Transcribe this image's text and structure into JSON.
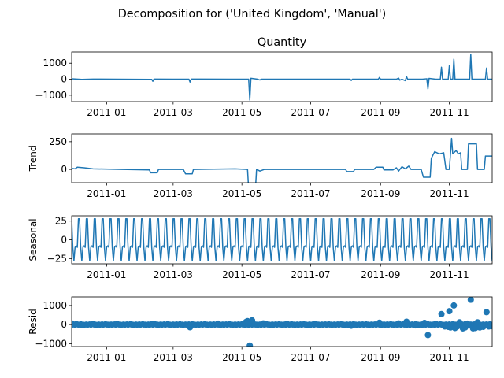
{
  "title": "Decomposition for ('United Kingdom', 'Manual')",
  "colors": {
    "line": "#1f77b4",
    "axis": "#000000",
    "zero": "#000000"
  },
  "x_ticks": [
    "2011-01-01",
    "2011-03-01",
    "2011-05-01",
    "2011-07-01",
    "2011-09-01",
    "2011-11-01"
  ],
  "x_tick_labels": [
    "2011-01",
    "2011-03",
    "2011-05",
    "2011-07",
    "2011-09",
    "2011-11"
  ],
  "x_range": [
    "2010-12-01",
    "2011-12-09"
  ],
  "chart_data": [
    {
      "type": "line",
      "panel_title": "Quantity",
      "ylabel": "",
      "ylim": [
        -1400,
        1700
      ],
      "y_ticks": [
        -1000,
        0,
        1000
      ],
      "points": [
        [
          "2010-12-01",
          30
        ],
        [
          "2010-12-10",
          -10
        ],
        [
          "2010-12-20",
          10
        ],
        [
          "2011-01-10",
          0
        ],
        [
          "2011-02-10",
          -10
        ],
        [
          "2011-02-11",
          -130
        ],
        [
          "2011-02-12",
          10
        ],
        [
          "2011-03-01",
          0
        ],
        [
          "2011-03-15",
          0
        ],
        [
          "2011-03-16",
          -180
        ],
        [
          "2011-03-17",
          10
        ],
        [
          "2011-04-20",
          0
        ],
        [
          "2011-05-07",
          0
        ],
        [
          "2011-05-08",
          -1300
        ],
        [
          "2011-05-09",
          60
        ],
        [
          "2011-05-15",
          0
        ],
        [
          "2011-05-17",
          -50
        ],
        [
          "2011-05-18",
          0
        ],
        [
          "2011-07-20",
          0
        ],
        [
          "2011-08-05",
          0
        ],
        [
          "2011-08-06",
          -80
        ],
        [
          "2011-08-07",
          0
        ],
        [
          "2011-08-30",
          0
        ],
        [
          "2011-08-31",
          110
        ],
        [
          "2011-09-01",
          0
        ],
        [
          "2011-09-15",
          0
        ],
        [
          "2011-09-17",
          70
        ],
        [
          "2011-09-18",
          -60
        ],
        [
          "2011-09-20",
          0
        ],
        [
          "2011-09-23",
          -90
        ],
        [
          "2011-09-24",
          170
        ],
        [
          "2011-09-25",
          0
        ],
        [
          "2011-10-08",
          0
        ],
        [
          "2011-10-12",
          30
        ],
        [
          "2011-10-13",
          -600
        ],
        [
          "2011-10-14",
          50
        ],
        [
          "2011-10-20",
          0
        ],
        [
          "2011-10-24",
          0
        ],
        [
          "2011-10-25",
          750
        ],
        [
          "2011-10-26",
          0
        ],
        [
          "2011-10-31",
          0
        ],
        [
          "2011-11-01",
          850
        ],
        [
          "2011-11-02",
          0
        ],
        [
          "2011-11-04",
          0
        ],
        [
          "2011-11-05",
          1250
        ],
        [
          "2011-11-06",
          0
        ],
        [
          "2011-11-19",
          0
        ],
        [
          "2011-11-20",
          1550
        ],
        [
          "2011-11-21",
          0
        ],
        [
          "2011-12-03",
          0
        ],
        [
          "2011-12-04",
          700
        ],
        [
          "2011-12-05",
          0
        ],
        [
          "2011-12-09",
          0
        ]
      ]
    },
    {
      "type": "line",
      "panel_title": "",
      "ylabel": "Trend",
      "ylim": [
        -120,
        320
      ],
      "y_ticks": [
        0,
        250
      ],
      "points": [
        [
          "2010-12-01",
          10
        ],
        [
          "2010-12-04",
          5
        ],
        [
          "2010-12-06",
          20
        ],
        [
          "2010-12-12",
          15
        ],
        [
          "2010-12-20",
          5
        ],
        [
          "2011-01-15",
          0
        ],
        [
          "2011-02-08",
          -5
        ],
        [
          "2011-02-09",
          -30
        ],
        [
          "2011-02-15",
          -30
        ],
        [
          "2011-02-16",
          0
        ],
        [
          "2011-03-10",
          0
        ],
        [
          "2011-03-12",
          -40
        ],
        [
          "2011-03-18",
          -40
        ],
        [
          "2011-03-19",
          0
        ],
        [
          "2011-04-25",
          5
        ],
        [
          "2011-05-06",
          0
        ],
        [
          "2011-05-07",
          -180
        ],
        [
          "2011-05-13",
          -180
        ],
        [
          "2011-05-14",
          0
        ],
        [
          "2011-05-17",
          -15
        ],
        [
          "2011-05-21",
          0
        ],
        [
          "2011-07-15",
          0
        ],
        [
          "2011-08-01",
          0
        ],
        [
          "2011-08-02",
          -20
        ],
        [
          "2011-08-08",
          -20
        ],
        [
          "2011-08-09",
          0
        ],
        [
          "2011-08-26",
          0
        ],
        [
          "2011-08-28",
          20
        ],
        [
          "2011-09-03",
          20
        ],
        [
          "2011-09-04",
          -5
        ],
        [
          "2011-09-12",
          -5
        ],
        [
          "2011-09-15",
          15
        ],
        [
          "2011-09-17",
          -15
        ],
        [
          "2011-09-20",
          25
        ],
        [
          "2011-09-23",
          5
        ],
        [
          "2011-09-26",
          30
        ],
        [
          "2011-09-28",
          0
        ],
        [
          "2011-10-07",
          0
        ],
        [
          "2011-10-09",
          -70
        ],
        [
          "2011-10-15",
          -70
        ],
        [
          "2011-10-16",
          100
        ],
        [
          "2011-10-19",
          160
        ],
        [
          "2011-10-23",
          140
        ],
        [
          "2011-10-27",
          150
        ],
        [
          "2011-10-29",
          0
        ],
        [
          "2011-11-01",
          0
        ],
        [
          "2011-11-03",
          280
        ],
        [
          "2011-11-04",
          140
        ],
        [
          "2011-11-07",
          170
        ],
        [
          "2011-11-09",
          140
        ],
        [
          "2011-11-11",
          150
        ],
        [
          "2011-11-12",
          0
        ],
        [
          "2011-11-17",
          0
        ],
        [
          "2011-11-18",
          230
        ],
        [
          "2011-11-25",
          230
        ],
        [
          "2011-11-26",
          0
        ],
        [
          "2011-12-02",
          0
        ],
        [
          "2011-12-03",
          120
        ],
        [
          "2011-12-09",
          120
        ]
      ]
    },
    {
      "type": "line",
      "panel_title": "",
      "ylabel": "Seasonal",
      "ylim": [
        -32,
        32
      ],
      "y_ticks": [
        -25,
        0,
        25
      ],
      "period_days": 7,
      "weekly_pattern": [
        28,
        -10,
        -28,
        -10,
        -8,
        -10,
        28
      ]
    },
    {
      "type": "scatter",
      "panel_title": "",
      "ylabel": "Resid",
      "ylim": [
        -1150,
        1450
      ],
      "y_ticks": [
        -1000,
        0,
        1000
      ],
      "points": [
        [
          "2010-12-01",
          60
        ],
        [
          "2010-12-05",
          20
        ],
        [
          "2010-12-10",
          -20
        ],
        [
          "2010-12-20",
          30
        ],
        [
          "2011-01-10",
          20
        ],
        [
          "2011-02-10",
          40
        ],
        [
          "2011-03-16",
          -140
        ],
        [
          "2011-04-10",
          50
        ],
        [
          "2011-05-04",
          100
        ],
        [
          "2011-05-05",
          150
        ],
        [
          "2011-05-06",
          180
        ],
        [
          "2011-05-08",
          -1100
        ],
        [
          "2011-05-10",
          220
        ],
        [
          "2011-05-20",
          60
        ],
        [
          "2011-06-10",
          40
        ],
        [
          "2011-07-05",
          30
        ],
        [
          "2011-08-06",
          -60
        ],
        [
          "2011-08-31",
          100
        ],
        [
          "2011-09-17",
          60
        ],
        [
          "2011-09-24",
          150
        ],
        [
          "2011-10-02",
          -40
        ],
        [
          "2011-10-10",
          90
        ],
        [
          "2011-10-13",
          -550
        ],
        [
          "2011-10-20",
          40
        ],
        [
          "2011-10-25",
          550
        ],
        [
          "2011-10-28",
          -100
        ],
        [
          "2011-10-31",
          -120
        ],
        [
          "2011-11-01",
          700
        ],
        [
          "2011-11-02",
          -150
        ],
        [
          "2011-11-05",
          1000
        ],
        [
          "2011-11-06",
          -180
        ],
        [
          "2011-11-08",
          -100
        ],
        [
          "2011-11-10",
          120
        ],
        [
          "2011-11-13",
          -200
        ],
        [
          "2011-11-15",
          -150
        ],
        [
          "2011-11-17",
          50
        ],
        [
          "2011-11-20",
          1300
        ],
        [
          "2011-11-22",
          -200
        ],
        [
          "2011-11-24",
          -180
        ],
        [
          "2011-11-26",
          120
        ],
        [
          "2011-11-28",
          -150
        ],
        [
          "2011-12-01",
          -120
        ],
        [
          "2011-12-04",
          650
        ],
        [
          "2011-12-06",
          -100
        ],
        [
          "2011-12-08",
          -80
        ]
      ]
    }
  ]
}
